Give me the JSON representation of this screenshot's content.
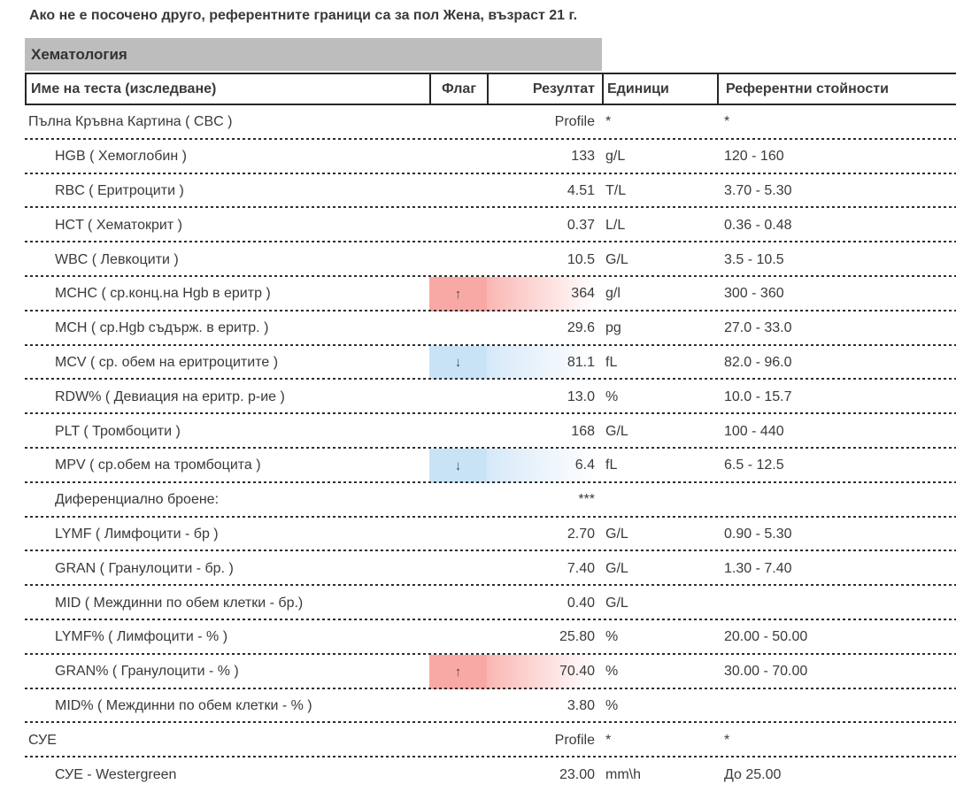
{
  "note": "Ако не е посочено друго, референтните граници са за пол Жена, възраст 21 г.",
  "section": {
    "title": "Хематология"
  },
  "table": {
    "columns": {
      "name": "Име на теста (изследване)",
      "flag": "Флаг",
      "result": "Резултат",
      "units": "Единици",
      "reference": "Референтни стойности"
    },
    "flag_icons": {
      "high": "↑",
      "low": "↓"
    },
    "colors": {
      "category_bar": "#bdbdbd",
      "text": "#3a3a3a",
      "high_flag": "#f8a8a5",
      "high_fade": "#f9b7b4",
      "low_flag": "#c9e3f6",
      "low_fade": "#d6e9f8"
    },
    "rows": [
      {
        "name": "Пълна Кръвна Картина ( CBC )",
        "indent": false,
        "flag": null,
        "result": "Profile",
        "units": "*",
        "reference": "*"
      },
      {
        "name": "HGB ( Хемоглобин )",
        "indent": true,
        "flag": null,
        "result": "133",
        "units": "g/L",
        "reference": "120 - 160"
      },
      {
        "name": "RBC ( Еритроцити )",
        "indent": true,
        "flag": null,
        "result": "4.51",
        "units": "T/L",
        "reference": "3.70 - 5.30"
      },
      {
        "name": "HCT ( Хематокрит )",
        "indent": true,
        "flag": null,
        "result": "0.37",
        "units": "L/L",
        "reference": "0.36 - 0.48"
      },
      {
        "name": "WBC ( Левкоцити )",
        "indent": true,
        "flag": null,
        "result": "10.5",
        "units": "G/L",
        "reference": "3.5 - 10.5"
      },
      {
        "name": "MCHC ( ср.конц.на Hgb в еритр )",
        "indent": true,
        "flag": "high",
        "result": "364",
        "units": "g/l",
        "reference": "300 - 360"
      },
      {
        "name": "MCH ( ср.Hgb съдърж. в еритр. )",
        "indent": true,
        "flag": null,
        "result": "29.6",
        "units": "pg",
        "reference": "27.0 - 33.0"
      },
      {
        "name": "MCV ( ср. обем на еритроцитите )",
        "indent": true,
        "flag": "low",
        "result": "81.1",
        "units": "fL",
        "reference": "82.0 - 96.0"
      },
      {
        "name": "RDW% ( Девиация на еритр. р-ие )",
        "indent": true,
        "flag": null,
        "result": "13.0",
        "units": "%",
        "reference": "10.0 - 15.7"
      },
      {
        "name": "PLT ( Тромбоцити )",
        "indent": true,
        "flag": null,
        "result": "168",
        "units": "G/L",
        "reference": "100 - 440"
      },
      {
        "name": "MPV ( ср.обем на тромбоцита )",
        "indent": true,
        "flag": "low",
        "result": "6.4",
        "units": "fL",
        "reference": "6.5 - 12.5"
      },
      {
        "name": "Диференциално броене:",
        "indent": true,
        "flag": null,
        "result": "***",
        "units": "",
        "reference": ""
      },
      {
        "name": "LYMF ( Лимфоцити - бр )",
        "indent": true,
        "flag": null,
        "result": "2.70",
        "units": "G/L",
        "reference": "0.90 - 5.30"
      },
      {
        "name": "GRAN ( Гранулоцити - бр. )",
        "indent": true,
        "flag": null,
        "result": "7.40",
        "units": "G/L",
        "reference": "1.30 - 7.40"
      },
      {
        "name": "MID ( Междинни по обем клетки - бр.)",
        "indent": true,
        "flag": null,
        "result": "0.40",
        "units": "G/L",
        "reference": ""
      },
      {
        "name": "LYMF% ( Лимфоцити - % )",
        "indent": true,
        "flag": null,
        "result": "25.80",
        "units": "%",
        "reference": "20.00 - 50.00"
      },
      {
        "name": "GRAN% ( Гранулоцити - % )",
        "indent": true,
        "flag": "high",
        "result": "70.40",
        "units": "%",
        "reference": "30.00 - 70.00"
      },
      {
        "name": "MID% ( Междинни по обем клетки - % )",
        "indent": true,
        "flag": null,
        "result": "3.80",
        "units": "%",
        "reference": ""
      },
      {
        "name": "СУЕ",
        "indent": false,
        "flag": null,
        "result": "Profile",
        "units": "*",
        "reference": "*"
      },
      {
        "name": "СУЕ - Westergreen",
        "indent": true,
        "flag": null,
        "result": "23.00",
        "units": "mm\\h",
        "reference": "До 25.00"
      }
    ]
  }
}
